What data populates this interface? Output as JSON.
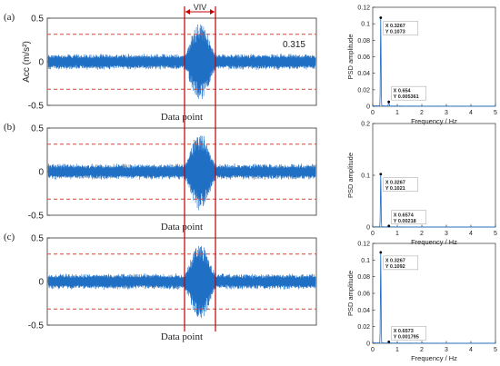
{
  "colors": {
    "signal": "#1f6fc4",
    "threshold": "#d6473a",
    "viv": "#c00000",
    "psd": "#1f6fc4",
    "datatip_text": "#2a6fd6"
  },
  "viv_label": "VIV",
  "threshold_label": "0.315",
  "chart_data": [
    {
      "panel_label": "(a)",
      "type": "line",
      "xlabel": "Data point",
      "ylabel": "Acc (m/s²)",
      "ylim": [
        -0.5,
        0.5
      ],
      "yticks": [
        "0.5",
        "0",
        "-0.5"
      ],
      "threshold": [
        0.315,
        -0.315
      ],
      "viv_peak": 0.43,
      "psd": {
        "type": "line",
        "xlabel": "Frequency / Hz",
        "ylabel": "PSD amplitude",
        "xlim": [
          0,
          5
        ],
        "ylim": [
          0,
          0.12
        ],
        "xticks": [
          "0",
          "1",
          "2",
          "3",
          "4",
          "5"
        ],
        "yticks": [
          "0.12",
          "0.1",
          "0.08",
          "0.06",
          "0.04",
          "0.02",
          "0"
        ],
        "peaks": [
          {
            "x": 0.3267,
            "y": 0.1073,
            "tip": [
              "X 0.3267",
              "Y 0.1073"
            ]
          },
          {
            "x": 0.654,
            "y": 0.005361,
            "tip": [
              "X 0.654",
              "Y 0.005361"
            ]
          }
        ]
      }
    },
    {
      "panel_label": "(b)",
      "type": "line",
      "xlabel": "Data point",
      "ylabel": "",
      "ylim": [
        -0.5,
        0.5
      ],
      "yticks": [
        "0.5",
        "0",
        "-0.5"
      ],
      "threshold": [
        0.315,
        -0.315
      ],
      "viv_peak": 0.43,
      "psd": {
        "type": "line",
        "xlabel": "Frequency / Hz",
        "ylabel": "PSD amplitude",
        "xlim": [
          0,
          5
        ],
        "ylim": [
          0,
          0.2
        ],
        "xticks": [
          "0",
          "1",
          "2",
          "3",
          "4",
          "5"
        ],
        "yticks": [
          "0.2",
          "0.1",
          "0"
        ],
        "peaks": [
          {
            "x": 0.3267,
            "y": 0.1021,
            "tip": [
              "X 0.3267",
              "Y 0.1021"
            ]
          },
          {
            "x": 0.6574,
            "y": 0.00218,
            "tip": [
              "X 0.6574",
              "Y 0.00218"
            ]
          }
        ]
      }
    },
    {
      "panel_label": "(c)",
      "type": "line",
      "xlabel": "Data point",
      "ylabel": "",
      "ylim": [
        -0.5,
        0.5
      ],
      "yticks": [
        "0.5",
        "0",
        "-0.5"
      ],
      "threshold": [
        0.315,
        -0.315
      ],
      "viv_peak": 0.43,
      "psd": {
        "type": "line",
        "xlabel": "Frequency / Hz",
        "ylabel": "PSD amplitude",
        "xlim": [
          0,
          5
        ],
        "ylim": [
          0,
          0.12
        ],
        "xticks": [
          "0",
          "1",
          "2",
          "3",
          "4",
          "5"
        ],
        "yticks": [
          "0.12",
          "0.1",
          "0.08",
          "0.06",
          "0.04",
          "0.02",
          "0"
        ],
        "peaks": [
          {
            "x": 0.3267,
            "y": 0.1092,
            "tip": [
              "X 0.3267",
              "Y 0.1092"
            ]
          },
          {
            "x": 0.6573,
            "y": 0.001795,
            "tip": [
              "X 0.6573",
              "Y 0.001795"
            ]
          }
        ]
      }
    }
  ]
}
